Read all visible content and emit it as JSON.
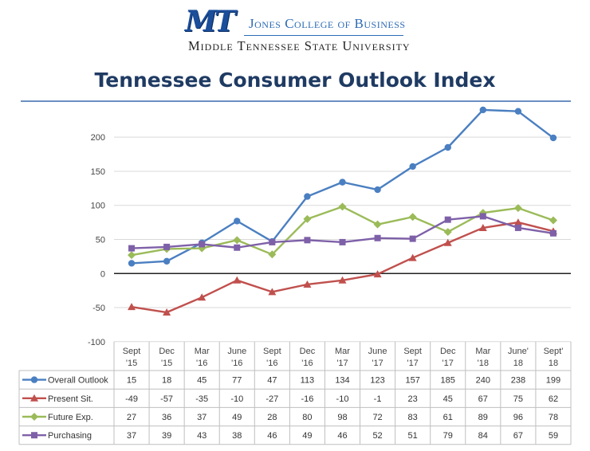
{
  "logo": {
    "mark": "MT",
    "college": "Jones College of Business",
    "university": "Middle Tennessee State University"
  },
  "chart_data": {
    "type": "line",
    "title": "Tennessee Consumer Outlook Index",
    "xlabel": "",
    "ylabel": "",
    "ylim": [
      -100,
      250
    ],
    "yticks": [
      -100,
      -50,
      0,
      50,
      100,
      150,
      200
    ],
    "grid": true,
    "legend": "data-table-left",
    "categories": [
      [
        "Sept",
        "'15"
      ],
      [
        "Dec",
        "'15"
      ],
      [
        "Mar",
        "'16"
      ],
      [
        "June",
        "'16"
      ],
      [
        "Sept",
        "'16"
      ],
      [
        "Dec",
        "'16"
      ],
      [
        "Mar",
        "'17"
      ],
      [
        "June",
        "'17"
      ],
      [
        "Sept",
        "'17"
      ],
      [
        "Dec",
        "'17"
      ],
      [
        "Mar",
        "'18"
      ],
      [
        "June'",
        "18"
      ],
      [
        "Sept'",
        "18"
      ]
    ],
    "series": [
      {
        "name": "Overall Outlook",
        "color": "#4a7fc1",
        "marker": "circle",
        "values": [
          15,
          18,
          45,
          77,
          47,
          113,
          134,
          123,
          157,
          185,
          240,
          238,
          199
        ]
      },
      {
        "name": "Present Sit.",
        "color": "#c0504d",
        "marker": "triangle",
        "values": [
          -49,
          -57,
          -35,
          -10,
          -27,
          -16,
          -10,
          -1,
          23,
          45,
          67,
          75,
          62
        ]
      },
      {
        "name": "Future Exp.",
        "color": "#9bbb59",
        "marker": "diamond",
        "values": [
          27,
          36,
          37,
          49,
          28,
          80,
          98,
          72,
          83,
          61,
          89,
          96,
          78
        ]
      },
      {
        "name": "Purchasing",
        "color": "#7e60a8",
        "marker": "square",
        "values": [
          37,
          39,
          43,
          38,
          46,
          49,
          46,
          52,
          51,
          79,
          84,
          67,
          59
        ]
      }
    ]
  }
}
